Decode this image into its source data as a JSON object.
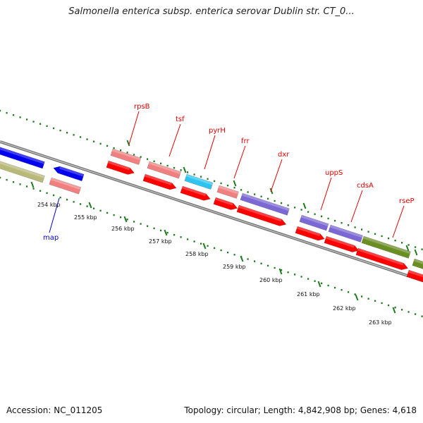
{
  "title": "Salmonella enterica subsp. enterica serovar Dublin str. CT_0...",
  "footer": {
    "accession": "Accession: NC_011205",
    "summary": "Topology: circular; Length: 4,842,908 bp; Genes: 4,618"
  },
  "colors": {
    "backbone": "#888888",
    "gc_dots": "#1f7a1f",
    "gene_red": "#ff0000",
    "gene_pink": "#f08080",
    "gene_blue": "#0000ee",
    "gene_cyan": "#2ec4f0",
    "gene_purple": "#7b68d4",
    "gene_olive": "#b9b97a",
    "gene_green": "#6b8e23",
    "label_red": "#e00000",
    "label_blue": "#0000cc"
  },
  "tick_labels": [
    "254 kbp",
    "255 kbp",
    "256 kbp",
    "257 kbp",
    "258 kbp",
    "259 kbp",
    "260 kbp",
    "261 kbp",
    "262 kbp",
    "263 kbp"
  ],
  "gene_labels": [
    {
      "text": "rpsB",
      "color": "red"
    },
    {
      "text": "tsf",
      "color": "red"
    },
    {
      "text": "pyrH",
      "color": "red"
    },
    {
      "text": "frr",
      "color": "red"
    },
    {
      "text": "dxr",
      "color": "red"
    },
    {
      "text": "uppS",
      "color": "red"
    },
    {
      "text": "cdsA",
      "color": "red"
    },
    {
      "text": "rseP",
      "color": "red"
    },
    {
      "text": "map",
      "color": "blue"
    }
  ]
}
